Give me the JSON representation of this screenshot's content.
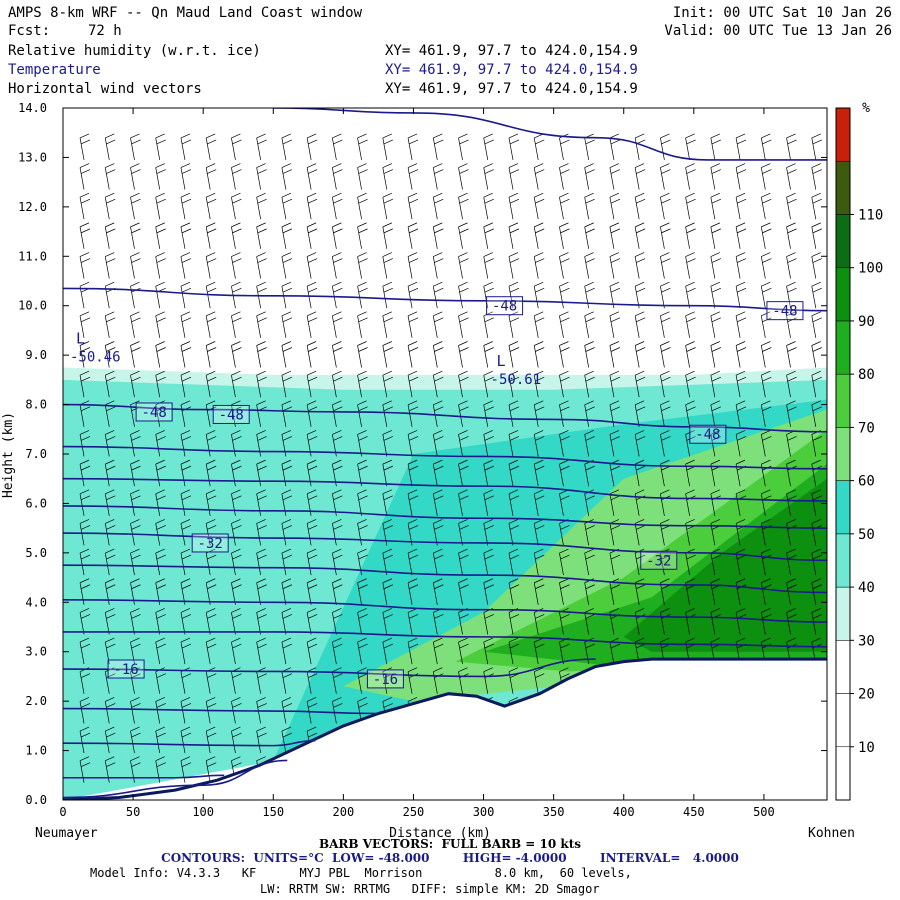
{
  "header": {
    "title": "AMPS 8-km WRF -- Qn Maud Land Coast window",
    "init": "Init: 00 UTC Sat 10 Jan 26",
    "fcst_label": "Fcst:",
    "fcst_value": "72 h",
    "valid": "Valid: 00 UTC Tue 13 Jan 26",
    "fields": [
      {
        "name": "Relative humidity (w.r.t. ice)",
        "xy": "XY= 461.9, 97.7 to 424.0,154.9"
      },
      {
        "name": "Temperature",
        "xy": "XY= 461.9, 97.7 to 424.0,154.9"
      },
      {
        "name": "Horizontal wind vectors",
        "xy": "XY= 461.9, 97.7 to 424.0,154.9"
      }
    ]
  },
  "chart_data": {
    "type": "contour_cross_section",
    "xlabel": "Distance (km)",
    "ylabel": "Height (km)",
    "xlim": [
      0,
      545
    ],
    "ylim": [
      0,
      14
    ],
    "x_ticks": [
      0,
      50,
      100,
      150,
      200,
      250,
      300,
      350,
      400,
      450,
      500
    ],
    "y_ticks": [
      "0.0",
      "1.0",
      "2.0",
      "3.0",
      "4.0",
      "5.0",
      "6.0",
      "7.0",
      "8.0",
      "9.0",
      "10.0",
      "11.0",
      "12.0",
      "13.0",
      "14.0"
    ],
    "left_endpoint": "Neumayer",
    "right_endpoint": "Kohnen",
    "colorbar": {
      "unit": "%",
      "labels": [
        10,
        20,
        30,
        40,
        50,
        60,
        70,
        80,
        90,
        100,
        110
      ],
      "levels": [
        0,
        10,
        20,
        30,
        40,
        50,
        60,
        70,
        80,
        90,
        100,
        110,
        120
      ],
      "colors": [
        "#ffffff",
        "#ffffff",
        "#ffffff",
        "#c8f5e9",
        "#6ee8d2",
        "#33d9c6",
        "#7ee07a",
        "#4ccd3c",
        "#1fae1f",
        "#0d8f10",
        "#0b6e14",
        "#3d5a0d",
        "#c8200a"
      ]
    },
    "terrain": [
      [
        0,
        0.0
      ],
      [
        40,
        0.05
      ],
      [
        80,
        0.2
      ],
      [
        110,
        0.4
      ],
      [
        140,
        0.7
      ],
      [
        170,
        1.1
      ],
      [
        200,
        1.5
      ],
      [
        225,
        1.75
      ],
      [
        250,
        1.95
      ],
      [
        275,
        2.15
      ],
      [
        295,
        2.1
      ],
      [
        315,
        1.9
      ],
      [
        340,
        2.15
      ],
      [
        360,
        2.45
      ],
      [
        380,
        2.7
      ],
      [
        400,
        2.8
      ],
      [
        420,
        2.85
      ],
      [
        545,
        2.85
      ]
    ],
    "temperature_contours": [
      {
        "label": "-48",
        "points": [
          [
            0,
            10.35
          ],
          [
            150,
            10.2
          ],
          [
            300,
            10.1
          ],
          [
            450,
            10.0
          ],
          [
            545,
            9.9
          ]
        ],
        "labels_at": [
          [
            315,
            10.0
          ],
          [
            515,
            9.9
          ]
        ]
      },
      {
        "label": "-48",
        "points": [
          [
            0,
            8.0
          ],
          [
            100,
            7.9
          ],
          [
            200,
            7.85
          ],
          [
            350,
            7.7
          ],
          [
            450,
            7.55
          ],
          [
            545,
            7.45
          ]
        ],
        "labels_at": [
          [
            65,
            7.85
          ],
          [
            120,
            7.8
          ],
          [
            460,
            7.4
          ]
        ]
      },
      {
        "points": [
          [
            0,
            7.15
          ],
          [
            150,
            7.05
          ],
          [
            300,
            6.95
          ],
          [
            450,
            6.75
          ],
          [
            545,
            6.7
          ]
        ]
      },
      {
        "points": [
          [
            0,
            6.5
          ],
          [
            150,
            6.45
          ],
          [
            300,
            6.35
          ],
          [
            450,
            6.1
          ],
          [
            545,
            6.05
          ]
        ]
      },
      {
        "points": [
          [
            0,
            5.95
          ],
          [
            150,
            5.85
          ],
          [
            300,
            5.7
          ],
          [
            450,
            5.55
          ],
          [
            545,
            5.5
          ]
        ]
      },
      {
        "label": "-32",
        "points": [
          [
            0,
            5.4
          ],
          [
            150,
            5.3
          ],
          [
            300,
            5.2
          ],
          [
            450,
            5.0
          ],
          [
            545,
            4.85
          ]
        ],
        "labels_at": [
          [
            105,
            5.2
          ],
          [
            425,
            4.85
          ]
        ]
      },
      {
        "points": [
          [
            0,
            4.75
          ],
          [
            150,
            4.7
          ],
          [
            300,
            4.55
          ],
          [
            450,
            4.35
          ],
          [
            545,
            4.2
          ]
        ]
      },
      {
        "points": [
          [
            0,
            4.05
          ],
          [
            150,
            4.0
          ],
          [
            300,
            3.85
          ],
          [
            450,
            3.7
          ],
          [
            545,
            3.6
          ]
        ]
      },
      {
        "points": [
          [
            0,
            3.4
          ],
          [
            150,
            3.4
          ],
          [
            300,
            3.3
          ],
          [
            450,
            3.15
          ],
          [
            545,
            3.1
          ]
        ]
      },
      {
        "label": "-16",
        "points": [
          [
            0,
            2.65
          ],
          [
            150,
            2.6
          ],
          [
            300,
            2.5
          ],
          [
            380,
            2.85
          ]
        ],
        "labels_at": [
          [
            45,
            2.65
          ],
          [
            230,
            2.45
          ]
        ]
      },
      {
        "points": [
          [
            0,
            1.85
          ],
          [
            150,
            1.8
          ],
          [
            225,
            1.75
          ]
        ]
      },
      {
        "points": [
          [
            0,
            1.15
          ],
          [
            150,
            1.1
          ],
          [
            180,
            1.2
          ]
        ]
      },
      {
        "points": [
          [
            0,
            0.45
          ],
          [
            80,
            0.45
          ],
          [
            115,
            0.5
          ]
        ]
      },
      {
        "points": [
          [
            0,
            0.05
          ],
          [
            100,
            0.3
          ],
          [
            160,
            0.8
          ]
        ]
      }
    ],
    "upper_contour": [
      [
        150,
        14.0
      ],
      [
        250,
        13.9
      ],
      [
        380,
        13.4
      ],
      [
        460,
        12.95
      ],
      [
        545,
        12.95
      ]
    ],
    "lows": [
      {
        "symbol": "L",
        "value": "-50.46",
        "x": 5,
        "y": 8.95
      },
      {
        "symbol": "L",
        "value": "-50.61",
        "x": 305,
        "y": 8.5
      }
    ],
    "rh_regions": [
      {
        "level": "30-40",
        "points": [
          [
            0,
            8.75
          ],
          [
            150,
            8.6
          ],
          [
            300,
            8.6
          ],
          [
            450,
            8.6
          ],
          [
            545,
            8.75
          ],
          [
            545,
            2.85
          ],
          [
            0,
            0
          ]
        ]
      },
      {
        "level": "40-50",
        "points": [
          [
            0,
            8.5
          ],
          [
            200,
            8.3
          ],
          [
            350,
            8.3
          ],
          [
            545,
            8.5
          ],
          [
            545,
            2.85
          ],
          [
            0,
            0
          ]
        ]
      },
      {
        "level": "50-60",
        "points": [
          [
            250,
            7.0
          ],
          [
            400,
            7.6
          ],
          [
            545,
            8.1
          ],
          [
            545,
            2.85
          ],
          [
            300,
            2.2
          ],
          [
            150,
            0.8
          ]
        ]
      },
      {
        "level": "60-70",
        "points": [
          [
            200,
            2.3
          ],
          [
            300,
            3.8
          ],
          [
            400,
            6.5
          ],
          [
            545,
            7.9
          ],
          [
            545,
            2.85
          ],
          [
            250,
            2.0
          ]
        ]
      },
      {
        "level": "70-80",
        "points": [
          [
            280,
            2.8
          ],
          [
            400,
            4.5
          ],
          [
            545,
            7.5
          ],
          [
            545,
            2.85
          ],
          [
            360,
            2.6
          ]
        ]
      },
      {
        "level": "80-90",
        "points": [
          [
            300,
            3.0
          ],
          [
            420,
            4.1
          ],
          [
            545,
            6.8
          ],
          [
            545,
            2.85
          ],
          [
            380,
            2.75
          ]
        ]
      },
      {
        "level": "90-100",
        "points": [
          [
            400,
            3.3
          ],
          [
            470,
            5.0
          ],
          [
            545,
            6.5
          ],
          [
            545,
            3.0
          ],
          [
            420,
            3.0
          ]
        ]
      }
    ]
  },
  "footer": {
    "barb_line": "BARB VECTORS:  FULL BARB = 10 kts",
    "contours_line": "CONTOURS:  UNITS=°C  LOW= -48.000        HIGH= -4.0000        INTERVAL=   4.0000",
    "model_info": "Model Info: V4.3.3   KF      MYJ PBL  Morrison          8.0 km,  60 levels,",
    "model_info2": "LW: RRTM SW: RRTMG   DIFF: simple KM: 2D Smagor"
  }
}
